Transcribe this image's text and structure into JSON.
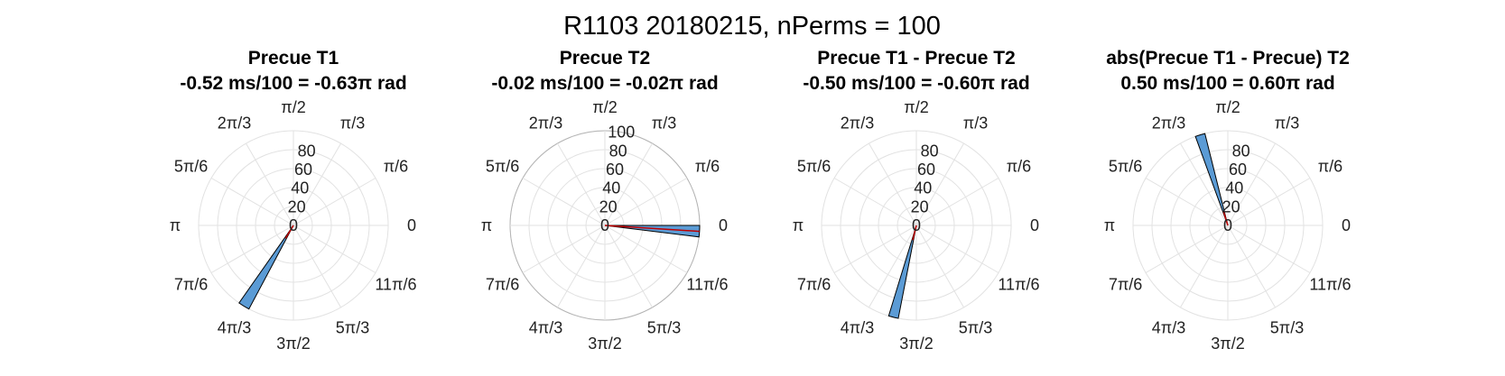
{
  "figure": {
    "title": "R1103 20180215, nPerms = 100"
  },
  "angle_labels": [
    "0",
    "π/6",
    "π/3",
    "π/2",
    "2π/3",
    "5π/6",
    "π",
    "7π/6",
    "4π/3",
    "3π/2",
    "5π/3",
    "11π/6"
  ],
  "chart_data": [
    {
      "type": "polar-histogram",
      "title_line1": "Precue T1",
      "title_line2": "-0.52 ms/100 = -0.63π rad",
      "rticks": [
        "0",
        "20",
        "40",
        "60",
        "80"
      ],
      "rlim": [
        0,
        100
      ],
      "show_outer_ring": false,
      "bars": [
        {
          "angle_start_deg": 235,
          "angle_end_deg": 242,
          "count": 100
        }
      ],
      "mean_vector": {
        "angle_deg": 238.6,
        "length": 16
      },
      "bar_color": "#5b9bd5",
      "mean_color": "#c00000"
    },
    {
      "type": "polar-histogram",
      "title_line1": "Precue T2",
      "title_line2": "-0.02 ms/100 = -0.02π rad",
      "rticks": [
        "0",
        "20",
        "40",
        "60",
        "80",
        "100"
      ],
      "rlim": [
        0,
        100
      ],
      "show_outer_ring": true,
      "bars": [
        {
          "angle_start_deg": -7,
          "angle_end_deg": 0,
          "count": 100
        }
      ],
      "mean_vector": {
        "angle_deg": -3.6,
        "length": 100
      },
      "bar_color": "#5b9bd5",
      "mean_color": "#c00000"
    },
    {
      "type": "polar-histogram",
      "title_line1": "Precue T1 - Precue T2",
      "title_line2": "-0.50 ms/100 = -0.60π rad",
      "rticks": [
        "0",
        "20",
        "40",
        "60",
        "80"
      ],
      "rlim": [
        0,
        100
      ],
      "show_outer_ring": false,
      "bars": [
        {
          "angle_start_deg": 253,
          "angle_end_deg": 259,
          "count": 100
        }
      ],
      "mean_vector": {
        "angle_deg": 256,
        "length": 16
      },
      "bar_color": "#5b9bd5",
      "mean_color": "#c00000"
    },
    {
      "type": "polar-histogram",
      "title_line1": "abs(Precue T1 - Precue) T2",
      "title_line2": "0.50 ms/100 = 0.60π rad",
      "rticks": [
        "0",
        "20",
        "40",
        "60",
        "80"
      ],
      "rlim": [
        0,
        100
      ],
      "show_outer_ring": false,
      "bars": [
        {
          "angle_start_deg": 104,
          "angle_end_deg": 110,
          "count": 100
        }
      ],
      "mean_vector": {
        "angle_deg": 107,
        "length": 16
      },
      "bar_color": "#5b9bd5",
      "mean_color": "#c00000"
    }
  ]
}
